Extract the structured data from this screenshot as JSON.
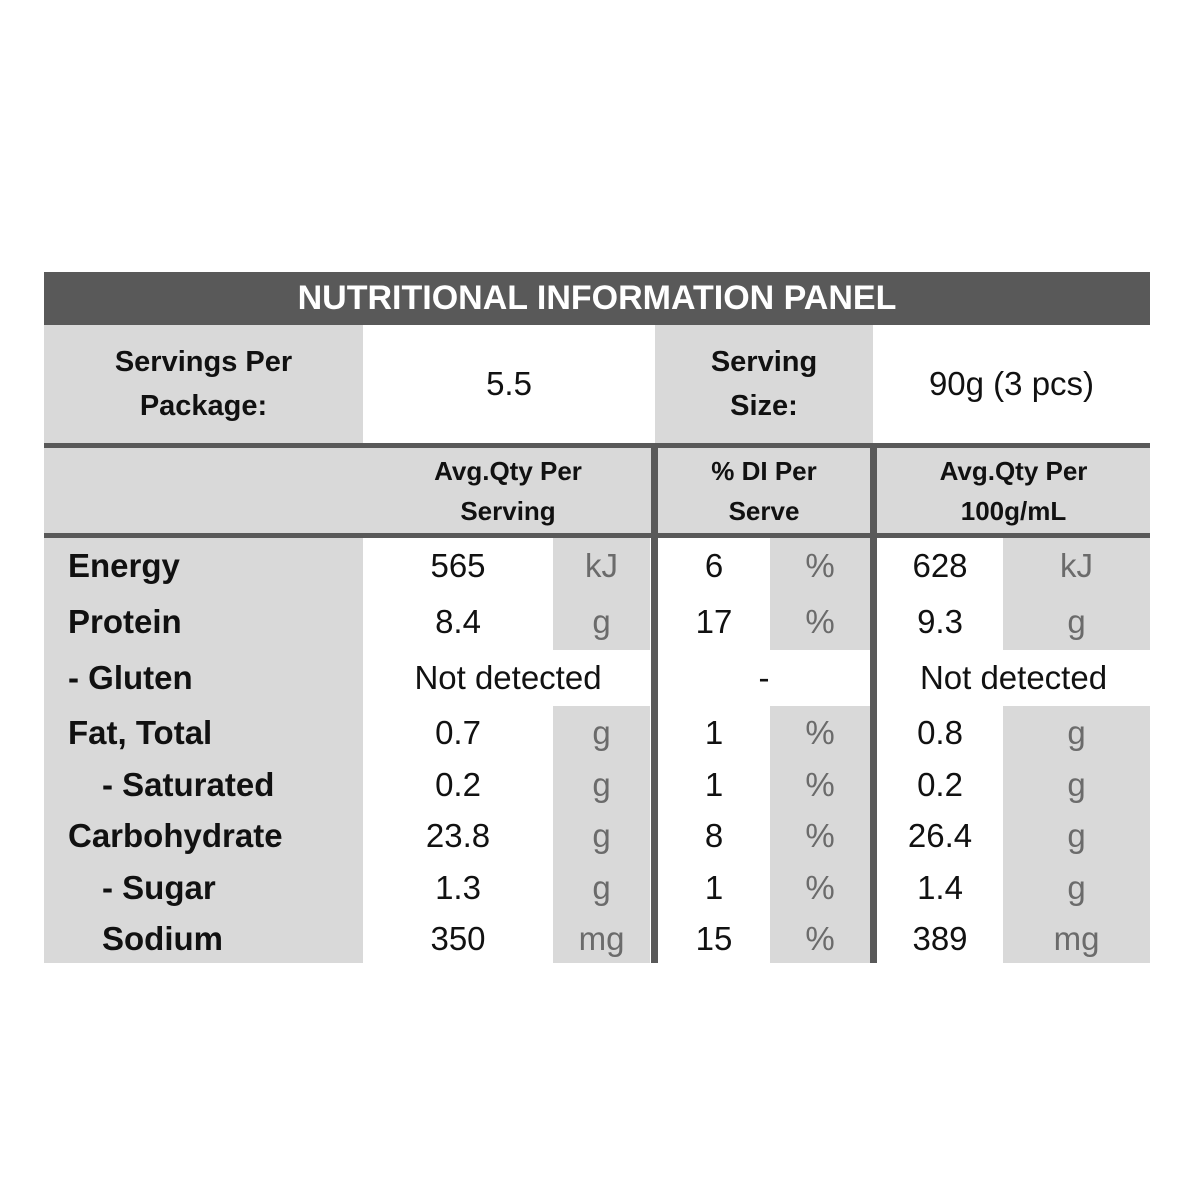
{
  "title": "NUTRITIONAL INFORMATION PANEL",
  "servings": {
    "per_package_label": "Servings Per Package:",
    "per_package": "5.5",
    "size_label": "Serving Size:",
    "size": "90g (3 pcs)"
  },
  "columns": [
    "Avg.Qty Per Serving",
    "% DI Per Serve",
    "Avg.Qty Per 100g/mL"
  ],
  "rows": [
    {
      "label": "Energy",
      "serving": "565",
      "serving_unit": "kJ",
      "di": "6",
      "di_unit": "%",
      "per_100": "628",
      "per_100_unit": "kJ"
    },
    {
      "label": "Protein",
      "serving": "8.4",
      "serving_unit": "g",
      "di": "17",
      "di_unit": "%",
      "per_100": "9.3",
      "per_100_unit": "g"
    },
    {
      "label": "- Gluten",
      "serving": "Not detected",
      "di": "-",
      "per_100": "Not detected"
    },
    {
      "label": "Fat, Total",
      "serving": "0.7",
      "serving_unit": "g",
      "di": "1",
      "di_unit": "%",
      "per_100": "0.8",
      "per_100_unit": "g"
    },
    {
      "label": "- Saturated",
      "serving": "0.2",
      "serving_unit": "g",
      "di": "1",
      "di_unit": "%",
      "per_100": "0.2",
      "per_100_unit": "g"
    },
    {
      "label": "Carbohydrate",
      "serving": "23.8",
      "serving_unit": "g",
      "di": "8",
      "di_unit": "%",
      "per_100": "26.4",
      "per_100_unit": "g"
    },
    {
      "label": "- Sugar",
      "serving": "1.3",
      "serving_unit": "g",
      "di": "1",
      "di_unit": "%",
      "per_100": "1.4",
      "per_100_unit": "g"
    },
    {
      "label": "Sodium",
      "serving": "350",
      "serving_unit": "mg",
      "di": "15",
      "di_unit": "%",
      "per_100": "389",
      "per_100_unit": "mg"
    }
  ]
}
